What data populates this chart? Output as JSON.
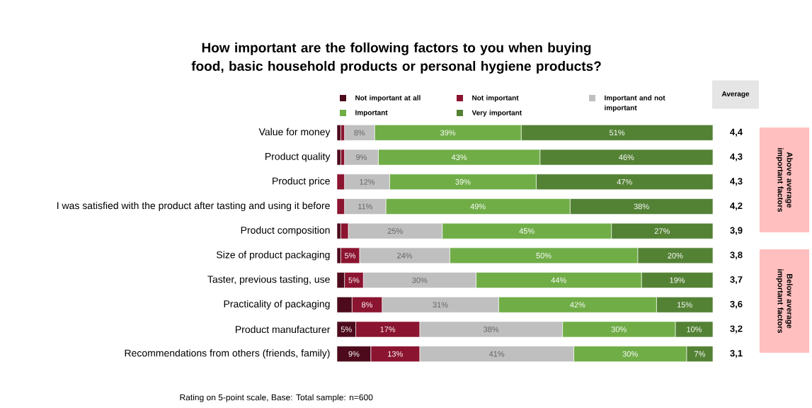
{
  "chart_data": {
    "type": "bar",
    "orientation": "horizontal",
    "stacked": true,
    "title": "How important are the following factors to you when buying food, basic household products or personal hygiene products?",
    "categories": [
      "Value for money",
      "Product quality",
      "Product price",
      "I was satisfied with the product after tasting and using it before",
      "Product composition",
      "Size of product packaging",
      "Taster, previous tasting, use",
      "Practicality of packaging",
      "Product manufacturer",
      "Recommendations from others (friends, family)"
    ],
    "series": [
      {
        "name": "Not important at all",
        "color": "#4d0a1c",
        "values": [
          1,
          1,
          0,
          0,
          1,
          1,
          2,
          4,
          5,
          9
        ],
        "value_labels": [
          null,
          null,
          null,
          null,
          null,
          null,
          null,
          null,
          "5%",
          "9%"
        ]
      },
      {
        "name": "Not important",
        "color": "#8b1430",
        "values": [
          1,
          1,
          2,
          2,
          2,
          5,
          5,
          8,
          17,
          13
        ],
        "value_labels": [
          null,
          null,
          null,
          null,
          null,
          "5%",
          "5%",
          "8%",
          "17%",
          "13%"
        ]
      },
      {
        "name": "Important and not important",
        "color": "#bfbfbf",
        "values": [
          8,
          9,
          12,
          11,
          25,
          24,
          30,
          31,
          38,
          41
        ],
        "value_labels": [
          "8%",
          "9%",
          "12%",
          "11%",
          "25%",
          "24%",
          "30%",
          "31%",
          "38%",
          "41%"
        ]
      },
      {
        "name": "Important",
        "color": "#70ad47",
        "values": [
          39,
          43,
          39,
          49,
          45,
          50,
          44,
          42,
          30,
          30
        ],
        "value_labels": [
          "39%",
          "43%",
          "39%",
          "49%",
          "45%",
          "50%",
          "44%",
          "42%",
          "30%",
          "30%"
        ]
      },
      {
        "name": "Very important",
        "color": "#548235",
        "values": [
          51,
          46,
          47,
          38,
          27,
          20,
          19,
          15,
          10,
          7
        ],
        "value_labels": [
          "51%",
          "46%",
          "47%",
          "38%",
          "27%",
          "20%",
          "19%",
          "15%",
          "10%",
          "7%"
        ]
      }
    ],
    "legend": "top",
    "annotations": [
      "Average",
      "4,4",
      "4,3",
      "4,3",
      "4,2",
      "3,9",
      "3,8",
      "3,7",
      "3,6",
      "3,2",
      "3,1",
      "Above average important factors",
      "Below average important factors",
      "Rating on 5-point scale, Base: Total sample: n=600"
    ]
  }
}
